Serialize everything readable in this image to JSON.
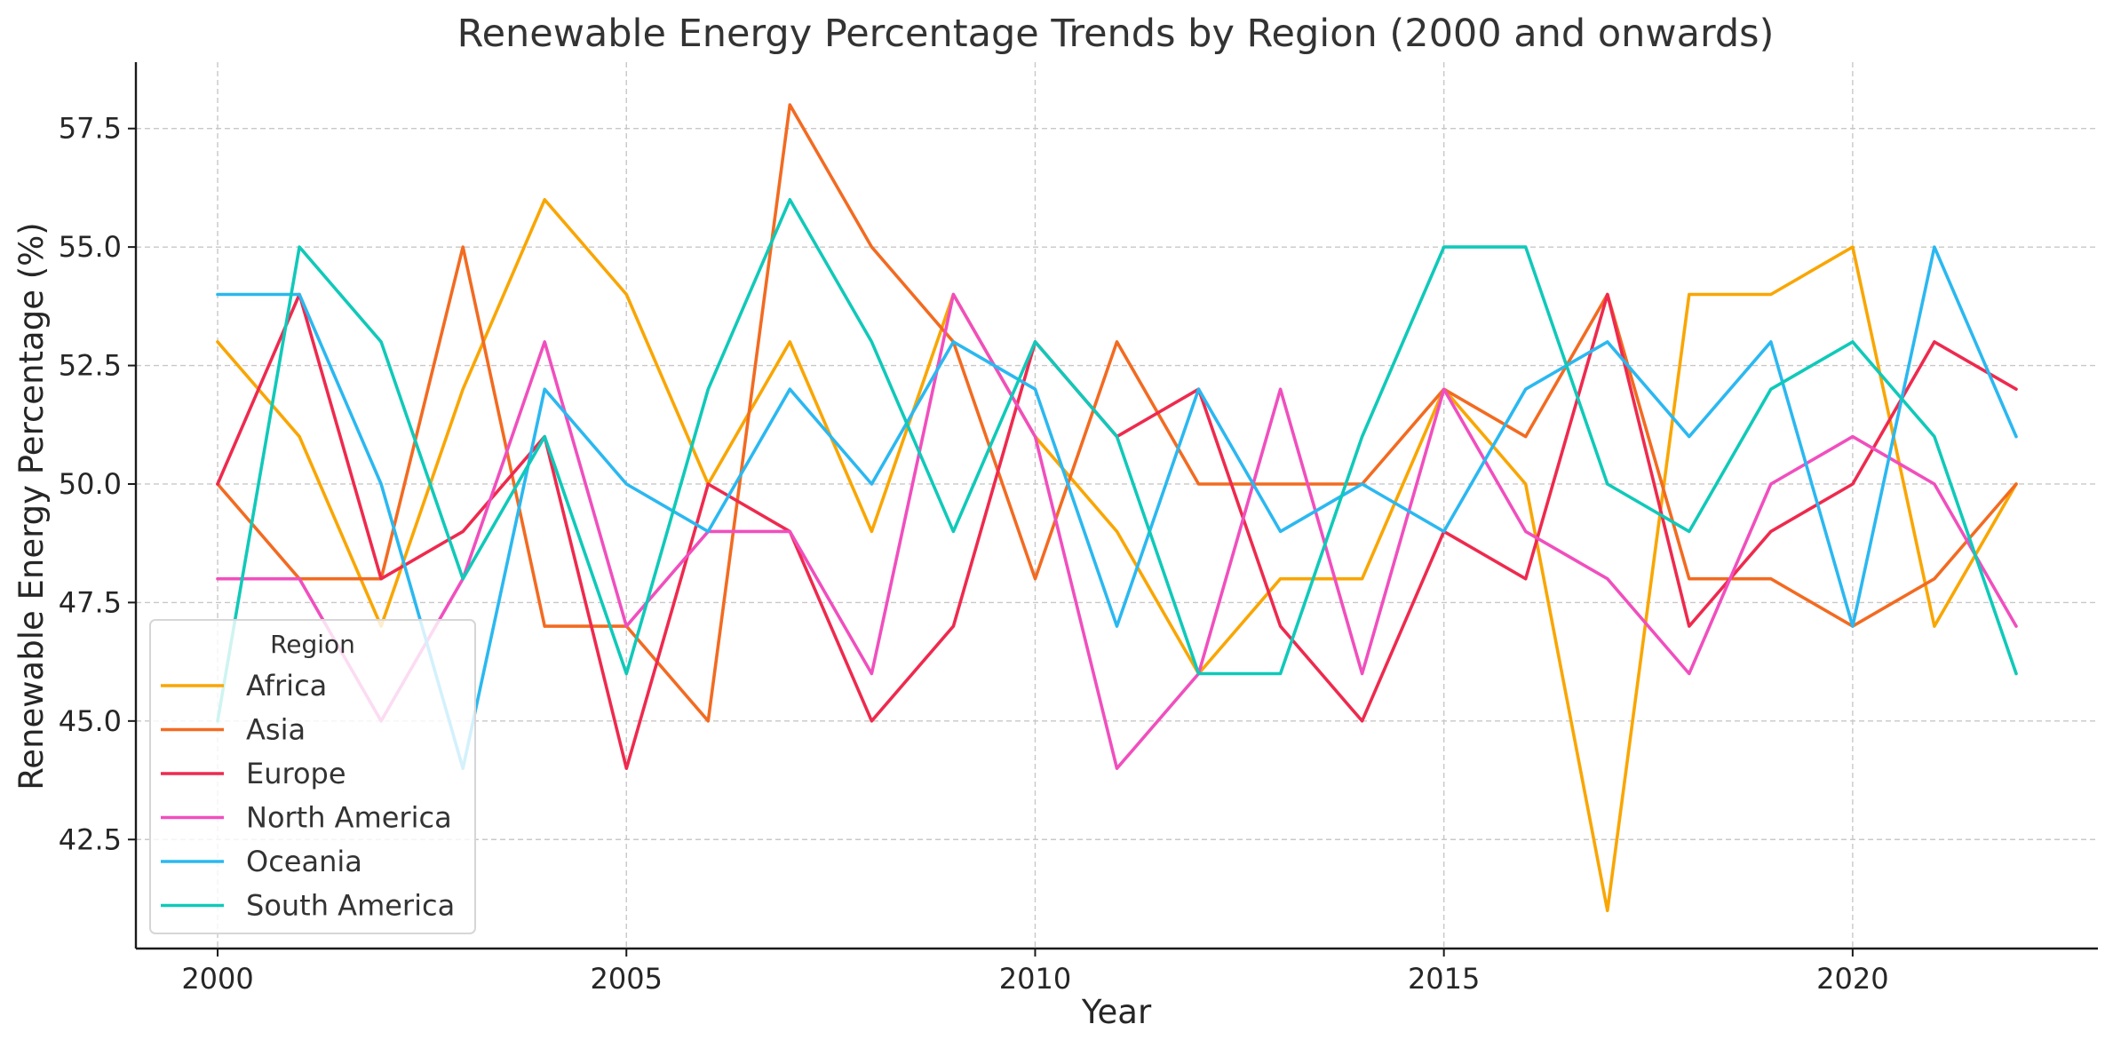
{
  "chart_data": {
    "type": "line",
    "title": "Renewable Energy Percentage Trends by Region (2000 and onwards)",
    "xlabel": "Year",
    "ylabel": "Renewable Energy Percentage (%)",
    "xlim": [
      1999,
      2023
    ],
    "ylim": [
      40.2,
      58.9
    ],
    "x_ticks": [
      2000,
      2005,
      2010,
      2015,
      2020
    ],
    "y_ticks": [
      42.5,
      45.0,
      47.5,
      50.0,
      52.5,
      55.0,
      57.5
    ],
    "y_tick_labels": [
      "42.5",
      "45.0",
      "47.5",
      "50.0",
      "52.5",
      "55.0",
      "57.5"
    ],
    "grid": true,
    "legend_title": "Region",
    "legend_position": "lower-left",
    "x": [
      2000,
      2001,
      2002,
      2003,
      2004,
      2005,
      2006,
      2007,
      2008,
      2009,
      2010,
      2011,
      2012,
      2013,
      2014,
      2015,
      2016,
      2017,
      2018,
      2019,
      2020,
      2021,
      2022
    ],
    "series": [
      {
        "name": "Africa",
        "color": "#F9A602",
        "values": [
          53,
          51,
          47,
          52,
          56,
          54,
          50,
          53,
          49,
          54,
          51,
          49,
          46,
          48,
          48,
          52,
          50,
          41,
          54,
          54,
          55,
          47,
          50
        ]
      },
      {
        "name": "Asia",
        "color": "#F26B21",
        "values": [
          50,
          48,
          48,
          55,
          47,
          47,
          45,
          58,
          55,
          53,
          48,
          53,
          50,
          50,
          50,
          52,
          51,
          54,
          48,
          48,
          47,
          48,
          50
        ]
      },
      {
        "name": "Europe",
        "color": "#EE2A4E",
        "values": [
          50,
          54,
          48,
          49,
          51,
          44,
          50,
          49,
          45,
          47,
          53,
          51,
          52,
          47,
          45,
          49,
          48,
          54,
          47,
          49,
          50,
          53,
          52
        ]
      },
      {
        "name": "North America",
        "color": "#F04FBE",
        "values": [
          48,
          48,
          45,
          48,
          53,
          47,
          49,
          49,
          46,
          54,
          51,
          44,
          46,
          52,
          46,
          52,
          49,
          48,
          46,
          50,
          51,
          50,
          47
        ]
      },
      {
        "name": "Oceania",
        "color": "#2BB8F0",
        "values": [
          54,
          54,
          50,
          44,
          52,
          50,
          49,
          52,
          50,
          53,
          52,
          47,
          52,
          49,
          50,
          49,
          52,
          53,
          51,
          53,
          47,
          55,
          51
        ]
      },
      {
        "name": "South America",
        "color": "#10C9B9",
        "values": [
          45,
          55,
          53,
          48,
          51,
          46,
          52,
          56,
          53,
          49,
          53,
          51,
          46,
          46,
          51,
          55,
          55,
          50,
          49,
          52,
          53,
          51,
          46
        ]
      }
    ]
  }
}
